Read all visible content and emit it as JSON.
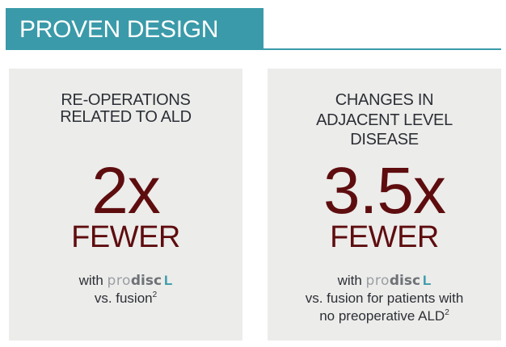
{
  "header": {
    "title": "PROVEN DESIGN",
    "accent_color": "#3a9aa9"
  },
  "stats": [
    {
      "heading": [
        "RE-OPERATIONS",
        "RELATED TO ALD"
      ],
      "value": "2x",
      "qualifier": "FEWER",
      "with_label": "with",
      "brand": {
        "pro": "pro",
        "disc": "disc",
        "l": "L"
      },
      "comparison": [
        "vs. fusion"
      ],
      "footnote": "2"
    },
    {
      "heading": [
        "CHANGES IN",
        "ADJACENT LEVEL",
        "DISEASE"
      ],
      "value": "3.5x",
      "qualifier": "FEWER",
      "with_label": "with",
      "brand": {
        "pro": "pro",
        "disc": "disc",
        "l": "L"
      },
      "comparison": [
        "vs. fusion for patients with",
        "no preoperative ALD"
      ],
      "footnote": "2"
    }
  ],
  "colors": {
    "value_color": "#5e0d0f",
    "panel_bg": "#ececea",
    "text_color": "#2c2f36"
  }
}
